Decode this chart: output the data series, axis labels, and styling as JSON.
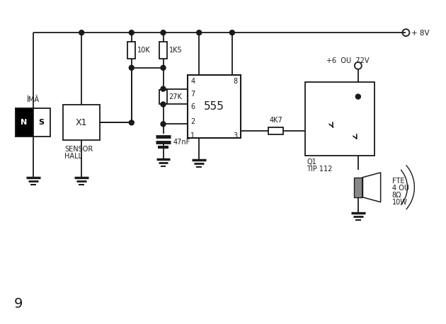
{
  "bg_color": "#ffffff",
  "line_color": "#1a1a1a",
  "figure_number": "9",
  "components": {
    "ima_label": "ÍMÃ",
    "sensor_ref": "X1",
    "sensor_label1": "SENSOR",
    "sensor_label2": "HALL",
    "R1_label": "10K",
    "R2_label": "1K5",
    "R3_label": "27K",
    "C1_label": "47nF",
    "R4_label": "4K7",
    "ic_label": "555",
    "transistor_ref": "Q1",
    "transistor_type": "TIP 112",
    "speaker_label1": "FTE",
    "speaker_label2": "4 OU",
    "speaker_label3": "8Ω",
    "speaker_label4": "10W",
    "vcc_label": "+ 8V",
    "vcc2_label": "+6  OU  72V"
  }
}
